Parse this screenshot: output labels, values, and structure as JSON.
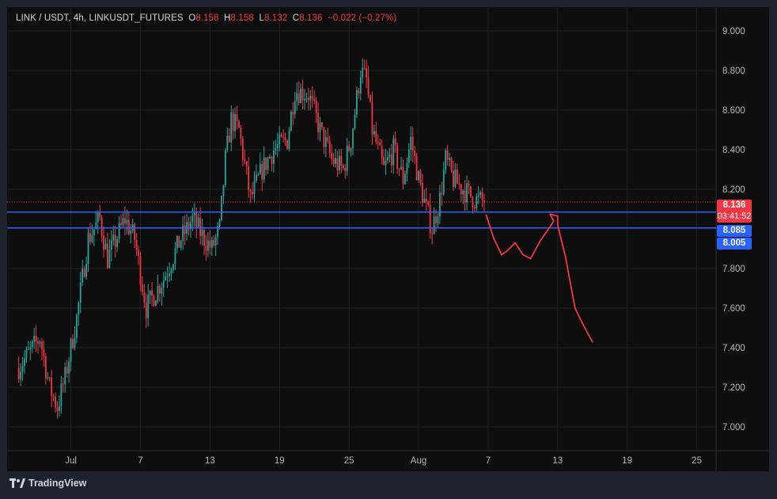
{
  "header": {
    "symbol": "LINK / USDT, 4h, LINKUSDT_FUTURES",
    "open_label": "O",
    "open": "8.158",
    "high_label": "H",
    "high": "8.158",
    "low_label": "L",
    "low": "8.132",
    "close_label": "C",
    "close": "8.136",
    "change": "−0.022 (−0.27%)"
  },
  "price_tags": {
    "last_price": "8.136",
    "countdown": "03:41:52",
    "upper_line": "8.085",
    "lower_line": "8.005"
  },
  "footer": {
    "brand": "TradingView",
    "logo_icon": "tradingview-logo-icon"
  },
  "colors": {
    "up": "#26a69a",
    "down": "#f23645",
    "hline": "#2962ff",
    "drawing": "#f23645",
    "grid": "#1f2229",
    "axis_text": "#b2b5be"
  },
  "chart_data": {
    "type": "candlestick",
    "title": "LINK / USDT, 4h, LINKUSDT_FUTURES",
    "y_axis": {
      "ticks": [
        7.0,
        7.2,
        7.4,
        7.6,
        7.8,
        8.2,
        8.4,
        8.6,
        8.8,
        9.0
      ],
      "range": [
        6.88,
        9.12
      ],
      "side": "right",
      "format": "0.000"
    },
    "x_axis": {
      "ticks": [
        "Jul",
        "7",
        "13",
        "19",
        "25",
        "Aug",
        "7",
        "13",
        "19",
        "25"
      ],
      "range_bars": [
        -6,
        361
      ],
      "tick_bar_index": [
        27,
        63,
        99,
        135,
        171,
        207,
        243,
        279,
        315,
        351
      ]
    },
    "grid": true,
    "horizontal_lines": [
      8.085,
      8.005
    ],
    "last_price_line": 8.136,
    "key_points": [
      {
        "bar": 0,
        "price": 7.3
      },
      {
        "bar": 11,
        "price": 7.45
      },
      {
        "bar": 16,
        "price": 7.2
      },
      {
        "bar": 20,
        "price": 7.1
      },
      {
        "bar": 24,
        "price": 7.25
      },
      {
        "bar": 30,
        "price": 7.55
      },
      {
        "bar": 36,
        "price": 7.95
      },
      {
        "bar": 42,
        "price": 8.05
      },
      {
        "bar": 46,
        "price": 7.85
      },
      {
        "bar": 55,
        "price": 8.05
      },
      {
        "bar": 60,
        "price": 7.95
      },
      {
        "bar": 66,
        "price": 7.6
      },
      {
        "bar": 75,
        "price": 7.75
      },
      {
        "bar": 84,
        "price": 7.95
      },
      {
        "bar": 90,
        "price": 8.05
      },
      {
        "bar": 96,
        "price": 7.95
      },
      {
        "bar": 100,
        "price": 7.9
      },
      {
        "bar": 104,
        "price": 8.0
      },
      {
        "bar": 107,
        "price": 8.35
      },
      {
        "bar": 110,
        "price": 8.55
      },
      {
        "bar": 114,
        "price": 8.5
      },
      {
        "bar": 120,
        "price": 8.15
      },
      {
        "bar": 126,
        "price": 8.3
      },
      {
        "bar": 132,
        "price": 8.4
      },
      {
        "bar": 139,
        "price": 8.45
      },
      {
        "bar": 143,
        "price": 8.7
      },
      {
        "bar": 150,
        "price": 8.68
      },
      {
        "bar": 156,
        "price": 8.5
      },
      {
        "bar": 162,
        "price": 8.35
      },
      {
        "bar": 168,
        "price": 8.3
      },
      {
        "bar": 172,
        "price": 8.45
      },
      {
        "bar": 177,
        "price": 8.8
      },
      {
        "bar": 180,
        "price": 8.75
      },
      {
        "bar": 183,
        "price": 8.5
      },
      {
        "bar": 189,
        "price": 8.3
      },
      {
        "bar": 194,
        "price": 8.4
      },
      {
        "bar": 199,
        "price": 8.25
      },
      {
        "bar": 203,
        "price": 8.45
      },
      {
        "bar": 207,
        "price": 8.25
      },
      {
        "bar": 211,
        "price": 8.1
      },
      {
        "bar": 214,
        "price": 8.0
      },
      {
        "bar": 218,
        "price": 8.15
      },
      {
        "bar": 221,
        "price": 8.35
      },
      {
        "bar": 225,
        "price": 8.25
      },
      {
        "bar": 230,
        "price": 8.2
      },
      {
        "bar": 236,
        "price": 8.15
      },
      {
        "bar": 241,
        "price": 8.136
      }
    ],
    "projection_drawing": [
      {
        "bar": 242,
        "price": 8.07
      },
      {
        "bar": 246,
        "price": 7.95
      },
      {
        "bar": 250,
        "price": 7.87
      },
      {
        "bar": 253,
        "price": 7.89
      },
      {
        "bar": 257,
        "price": 7.93
      },
      {
        "bar": 261,
        "price": 7.87
      },
      {
        "bar": 265,
        "price": 7.85
      },
      {
        "bar": 270,
        "price": 7.94
      },
      {
        "bar": 275,
        "price": 8.01
      },
      {
        "bar": 277,
        "price": 8.04
      },
      {
        "bar": 275,
        "price": 8.075
      },
      {
        "bar": 279,
        "price": 8.065
      },
      {
        "bar": 279,
        "price": 8.02
      },
      {
        "bar": 283,
        "price": 7.86
      },
      {
        "bar": 288,
        "price": 7.6
      },
      {
        "bar": 292,
        "price": 7.52
      },
      {
        "bar": 297,
        "price": 7.43
      }
    ]
  }
}
